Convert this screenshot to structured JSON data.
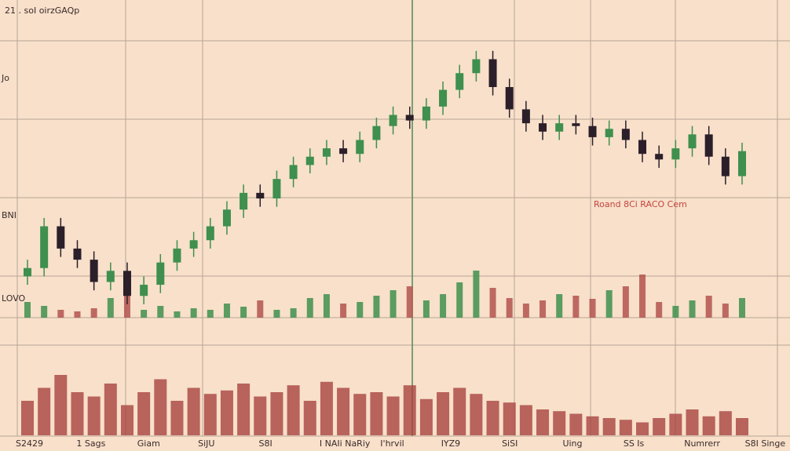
{
  "chart_data": {
    "type": "candlestick",
    "title": "21 . soI oirzGAQp",
    "side_labels": [
      "Jo",
      "BNI",
      "LOVO"
    ],
    "annotation": "Roand 8Ci RACO Cem",
    "up_color": "#3f8f4e",
    "down_color": "#2b1f2a",
    "ylim": [
      0,
      100
    ],
    "open": [
      12,
      15,
      30,
      22,
      18,
      10,
      14,
      5,
      9,
      17,
      22,
      25,
      30,
      36,
      42,
      40,
      47,
      52,
      55,
      58,
      56,
      61,
      66,
      70,
      68,
      73,
      79,
      85,
      90,
      80,
      72,
      67,
      64,
      67,
      66,
      62,
      65,
      61,
      56,
      54,
      58,
      63,
      55,
      48
    ],
    "high": [
      18,
      33,
      33,
      25,
      21,
      17,
      17,
      12,
      20,
      25,
      28,
      33,
      39,
      45,
      45,
      50,
      55,
      58,
      61,
      61,
      64,
      69,
      73,
      73,
      76,
      82,
      88,
      93,
      93,
      83,
      75,
      70,
      70,
      70,
      69,
      68,
      68,
      64,
      59,
      61,
      66,
      66,
      58,
      60
    ],
    "low": [
      9,
      12,
      19,
      15,
      7,
      7,
      2,
      2,
      6,
      14,
      19,
      22,
      27,
      33,
      37,
      37,
      44,
      49,
      52,
      53,
      53,
      58,
      63,
      65,
      65,
      70,
      76,
      82,
      77,
      69,
      64,
      61,
      61,
      63,
      59,
      59,
      58,
      53,
      51,
      51,
      55,
      52,
      45,
      45
    ],
    "close": [
      15,
      30,
      22,
      18,
      10,
      14,
      5,
      9,
      17,
      22,
      25,
      30,
      36,
      42,
      40,
      47,
      52,
      55,
      58,
      56,
      61,
      66,
      70,
      68,
      73,
      79,
      85,
      90,
      80,
      72,
      67,
      64,
      67,
      66,
      62,
      65,
      61,
      56,
      54,
      58,
      63,
      55,
      48,
      57
    ],
    "volume": {
      "color": "#b3544f",
      "ylim": [
        0,
        100
      ],
      "values": [
        20,
        15,
        10,
        8,
        12,
        25,
        30,
        10,
        15,
        8,
        12,
        10,
        18,
        14,
        22,
        10,
        12,
        25,
        30,
        18,
        20,
        28,
        35,
        40,
        22,
        30,
        45,
        60,
        38,
        25,
        18,
        22,
        30,
        28,
        24,
        35,
        40,
        55,
        20,
        15,
        22,
        28,
        18,
        25
      ]
    },
    "lower": {
      "color": "#a8433f",
      "ylim": [
        0,
        100
      ],
      "values": [
        40,
        55,
        70,
        50,
        45,
        60,
        35,
        50,
        65,
        40,
        55,
        48,
        52,
        60,
        45,
        50,
        58,
        40,
        62,
        55,
        48,
        50,
        45,
        58,
        42,
        50,
        55,
        48,
        40,
        38,
        35,
        30,
        28,
        25,
        22,
        20,
        18,
        15,
        20,
        25,
        30,
        22,
        28,
        20
      ]
    },
    "bottom_labels": [
      "S2429",
      "1 Sags",
      "Giam",
      "SiJU",
      "S8I",
      "I NAIi NaRiy",
      "I'hrvil",
      "IYZ9",
      "SiSI",
      "Uing",
      "SS Is",
      "Numrerr",
      "S8I Singe"
    ]
  }
}
